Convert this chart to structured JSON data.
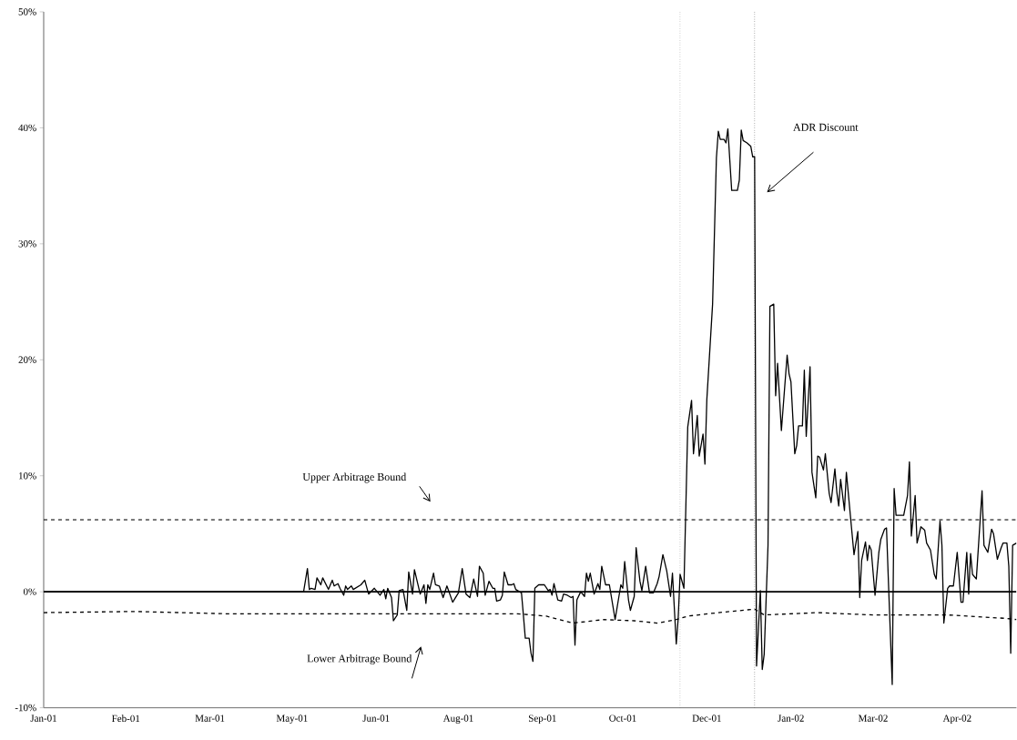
{
  "chart_data": {
    "type": "line",
    "ylim": [
      -10,
      50
    ],
    "xlim": [
      "2001-01-01",
      "2002-05-25"
    ],
    "yticks": [
      {
        "value": -10,
        "label": "-10%"
      },
      {
        "value": 0,
        "label": "0%"
      },
      {
        "value": 10,
        "label": "10%"
      },
      {
        "value": 20,
        "label": "20%"
      },
      {
        "value": 30,
        "label": "30%"
      },
      {
        "value": 40,
        "label": "40%"
      },
      {
        "value": 50,
        "label": "50%"
      }
    ],
    "xticks": [
      {
        "value": "2001-01-01",
        "label": "Jan-01"
      },
      {
        "value": "2001-02-13",
        "label": "Feb-01"
      },
      {
        "value": "2001-03-29",
        "label": "Mar-01"
      },
      {
        "value": "2001-05-11",
        "label": "May-01"
      },
      {
        "value": "2001-06-24",
        "label": "Jun-01"
      },
      {
        "value": "2001-08-06",
        "label": "Aug-01"
      },
      {
        "value": "2001-09-19",
        "label": "Sep-01"
      },
      {
        "value": "2001-10-31",
        "label": "Oct-01"
      },
      {
        "value": "2001-12-14",
        "label": "Dec-01"
      },
      {
        "value": "2002-01-27",
        "label": "Jan-02"
      },
      {
        "value": "2002-03-11",
        "label": "Mar-02"
      },
      {
        "value": "2002-04-24",
        "label": "Apr-02"
      }
    ],
    "marker": "none",
    "annotations": [
      "ADR Discount",
      "Upper Arbitrage Bound",
      "Lower Arbitrage Bound"
    ],
    "ref_lines": [
      {
        "axis": "y",
        "value": 0,
        "line_style": "solid",
        "color": "#000000"
      },
      {
        "axis": "x",
        "value": "2001-11-30",
        "line_style": "dotted",
        "color": "#000000"
      },
      {
        "axis": "x",
        "value": "2002-01-08",
        "line_style": "dotted",
        "color": "#000000"
      }
    ],
    "series": [
      {
        "color": "#000000",
        "line_style": "solid",
        "x": [
          "2001-01-01",
          "2001-05-17",
          "2001-05-19",
          "2001-05-20",
          "2001-05-21",
          "2001-05-23",
          "2001-05-24",
          "2001-05-26",
          "2001-05-27",
          "2001-05-30",
          "2001-06-01",
          "2001-06-02",
          "2001-06-04",
          "2001-06-05",
          "2001-06-07",
          "2001-06-08",
          "2001-06-09",
          "2001-06-11",
          "2001-06-12",
          "2001-06-16",
          "2001-06-18",
          "2001-06-20",
          "2001-06-23",
          "2001-06-26",
          "2001-06-28",
          "2001-06-29",
          "2001-06-30",
          "2001-07-02",
          "2001-07-03",
          "2001-07-05",
          "2001-07-06",
          "2001-07-08",
          "2001-07-10",
          "2001-07-11",
          "2001-07-13",
          "2001-07-14",
          "2001-07-17",
          "2001-07-19",
          "2001-07-20",
          "2001-07-21",
          "2001-07-22",
          "2001-07-24",
          "2001-07-25",
          "2001-07-27",
          "2001-07-29",
          "2001-07-31",
          "2001-08-03",
          "2001-08-06",
          "2001-08-08",
          "2001-08-10",
          "2001-08-12",
          "2001-08-14",
          "2001-08-16",
          "2001-08-17",
          "2001-08-19",
          "2001-08-20",
          "2001-08-22",
          "2001-08-24",
          "2001-08-25",
          "2001-08-26",
          "2001-08-28",
          "2001-08-29",
          "2001-08-30",
          "2001-09-01",
          "2001-09-03",
          "2001-09-04",
          "2001-09-05",
          "2001-09-08",
          "2001-09-09",
          "2001-09-10",
          "2001-09-12",
          "2001-09-13",
          "2001-09-14",
          "2001-09-15",
          "2001-09-17",
          "2001-09-20",
          "2001-09-22",
          "2001-09-23",
          "2001-09-24",
          "2001-09-25",
          "2001-09-27",
          "2001-09-29",
          "2001-09-30",
          "2001-10-02",
          "2001-10-04",
          "2001-10-05",
          "2001-10-06",
          "2001-10-07",
          "2001-10-09",
          "2001-10-11",
          "2001-10-12",
          "2001-10-13",
          "2001-10-14",
          "2001-10-16",
          "2001-10-18",
          "2001-10-19",
          "2001-10-20",
          "2001-10-22",
          "2001-10-24",
          "2001-10-27",
          "2001-10-30",
          "2001-10-31",
          "2001-11-01",
          "2001-11-03",
          "2001-11-04",
          "2001-11-06",
          "2001-11-07",
          "2001-11-09",
          "2001-11-10",
          "2001-11-12",
          "2001-11-14",
          "2001-11-16",
          "2001-11-18",
          "2001-11-19",
          "2001-11-21",
          "2001-11-23",
          "2001-11-25",
          "2001-11-26",
          "2001-11-28",
          "2001-11-29",
          "2001-11-30",
          "2001-12-02",
          "2001-12-04",
          "2001-12-06",
          "2001-12-07",
          "2001-12-09",
          "2001-12-10",
          "2001-12-12",
          "2001-12-13",
          "2001-12-14",
          "2001-12-17",
          "2001-12-19",
          "2001-12-20",
          "2001-12-21",
          "2001-12-23",
          "2001-12-24",
          "2001-12-25",
          "2001-12-27",
          "2001-12-30",
          "2001-12-31",
          "2002-01-01",
          "2002-01-02",
          "2002-01-04",
          "2002-01-06",
          "2002-01-07",
          "2002-01-08",
          "2002-01-09",
          "2002-01-11",
          "2002-01-12",
          "2002-01-13",
          "2002-01-15",
          "2002-01-16",
          "2002-01-18",
          "2002-01-19",
          "2002-01-20",
          "2002-01-22",
          "2002-01-25",
          "2002-01-26",
          "2002-01-27",
          "2002-01-29",
          "2002-01-30",
          "2002-01-31",
          "2002-02-02",
          "2002-02-03",
          "2002-02-04",
          "2002-02-06",
          "2002-02-07",
          "2002-02-09",
          "2002-02-10",
          "2002-02-11",
          "2002-02-13",
          "2002-02-14",
          "2002-02-16",
          "2002-02-17",
          "2002-02-19",
          "2002-02-20",
          "2002-02-21",
          "2002-02-22",
          "2002-02-24",
          "2002-02-25",
          "2002-03-01",
          "2002-03-03",
          "2002-03-04",
          "2002-03-05",
          "2002-03-07",
          "2002-03-08",
          "2002-03-09",
          "2002-03-10",
          "2002-03-12",
          "2002-03-14",
          "2002-03-15",
          "2002-03-17",
          "2002-03-18",
          "2002-03-19",
          "2002-03-21",
          "2002-03-22",
          "2002-03-23",
          "2002-03-27",
          "2002-03-29",
          "2002-03-30",
          "2002-03-31",
          "2002-04-02",
          "2002-04-03",
          "2002-04-05",
          "2002-04-07",
          "2002-04-08",
          "2002-04-10",
          "2002-04-12",
          "2002-04-13",
          "2002-04-15",
          "2002-04-16",
          "2002-04-17",
          "2002-04-19",
          "2002-04-20",
          "2002-04-22",
          "2002-04-24",
          "2002-04-26",
          "2002-04-27",
          "2002-04-29",
          "2002-04-30",
          "2002-05-01",
          "2002-05-02",
          "2002-05-04",
          "2002-05-07",
          "2002-05-08",
          "2002-05-10",
          "2002-05-12",
          "2002-05-13",
          "2002-05-15",
          "2002-05-17",
          "2002-05-18",
          "2002-05-20",
          "2002-05-21",
          "2002-05-22",
          "2002-05-23",
          "2002-05-25"
        ],
        "values": [
          0,
          0,
          2.0,
          0.2,
          0.3,
          0.2,
          1.2,
          0.6,
          1.2,
          0.2,
          1.0,
          0.5,
          0.7,
          0.3,
          -0.3,
          0.5,
          0.2,
          0.5,
          0.2,
          0.6,
          1.0,
          -0.2,
          0.3,
          -0.3,
          0.2,
          -0.6,
          0.3,
          -0.5,
          -2.5,
          -2.0,
          0.1,
          0.2,
          -1.6,
          1.7,
          -0.2,
          1.9,
          -0.2,
          0.6,
          -1.0,
          0.6,
          0.2,
          1.6,
          0.6,
          0.5,
          -0.5,
          0.5,
          -0.9,
          -0.1,
          2.0,
          -0.2,
          -0.5,
          1.1,
          -0.4,
          2.2,
          1.6,
          -0.3,
          0.9,
          0.3,
          0.3,
          -0.8,
          -0.7,
          -0.3,
          1.7,
          0.6,
          0.6,
          0.7,
          0.2,
          -0.1,
          -2.0,
          -4.0,
          -4.0,
          -5.3,
          -6.0,
          0.3,
          0.6,
          0.6,
          0.1,
          0.2,
          -0.3,
          0.7,
          -0.7,
          -0.8,
          -0.2,
          -0.3,
          -0.5,
          -0.4,
          -4.6,
          -0.7,
          0.0,
          -0.4,
          1.6,
          0.9,
          1.6,
          -0.2,
          0.7,
          0.2,
          2.2,
          0.6,
          0.6,
          -2.4,
          0.6,
          0.3,
          2.6,
          -0.7,
          -1.6,
          -0.4,
          3.8,
          0.9,
          0.1,
          2.2,
          -0.1,
          -0.1,
          0.7,
          1.3,
          3.2,
          1.8,
          -0.4,
          1.6,
          -4.5,
          -2.3,
          1.5,
          0.3,
          14.2,
          16.5,
          11.9,
          15.2,
          11.7,
          13.6,
          11.0,
          16.6,
          24.8,
          37.4,
          39.7,
          39.0,
          39.0,
          38.7,
          39.9,
          34.6,
          34.6,
          35.5,
          39.8,
          38.9,
          38.7,
          38.4,
          37.5,
          37.5,
          -6.4,
          0.1,
          -6.7,
          -5.4,
          4.0,
          24.6,
          24.8,
          16.9,
          19.7,
          13.9,
          20.4,
          18.8,
          18.1,
          11.9,
          12.6,
          14.3,
          14.3,
          19.1,
          13.4,
          19.4,
          10.3,
          8.1,
          11.7,
          11.6,
          10.5,
          11.9,
          8.5,
          7.7,
          10.6,
          8.6,
          7.4,
          9.7,
          7.0,
          10.3,
          3.2,
          5.2,
          -0.5,
          2.7,
          4.3,
          2.7,
          4.0,
          3.6,
          -0.3,
          3.4,
          4.5,
          5.4,
          5.5,
          0.9,
          -8.0,
          8.9,
          6.6,
          6.6,
          8.3,
          11.2,
          4.8,
          8.3,
          4.2,
          5.6,
          5.3,
          4.2,
          3.6,
          1.5,
          1.1,
          6.1,
          4.0,
          -2.7,
          0.3,
          0.5,
          0.5,
          3.4,
          -0.9,
          -0.9,
          3.4,
          -0.2,
          3.3,
          1.5,
          1.1,
          8.7,
          4.0,
          3.4,
          5.4,
          5.0,
          2.8,
          3.8,
          4.2,
          4.2,
          2.2,
          -5.3,
          4.0,
          4.2
        ]
      },
      {
        "color": "#000000",
        "line_style": "dashed",
        "x": [
          "2001-01-01",
          "2002-05-25"
        ],
        "values": [
          6.2,
          6.2
        ]
      },
      {
        "color": "#000000",
        "line_style": "dashed",
        "x": [
          "2001-01-01",
          "2001-02-18",
          "2001-04-07",
          "2001-06-17",
          "2001-08-04",
          "2001-09-06",
          "2001-09-21",
          "2001-10-05",
          "2001-10-21",
          "2001-11-06",
          "2001-11-18",
          "2001-11-28",
          "2001-12-04",
          "2001-12-20",
          "2002-01-08",
          "2002-01-13",
          "2002-02-10",
          "2002-03-11",
          "2002-04-19",
          "2002-05-20",
          "2002-05-25"
        ],
        "values": [
          -1.8,
          -1.7,
          -1.9,
          -1.9,
          -1.9,
          -1.9,
          -2.1,
          -2.7,
          -2.4,
          -2.5,
          -2.7,
          -2.4,
          -2.1,
          -1.8,
          -1.5,
          -2.0,
          -1.8,
          -2.0,
          -2.0,
          -2.3,
          -2.4
        ]
      }
    ]
  }
}
